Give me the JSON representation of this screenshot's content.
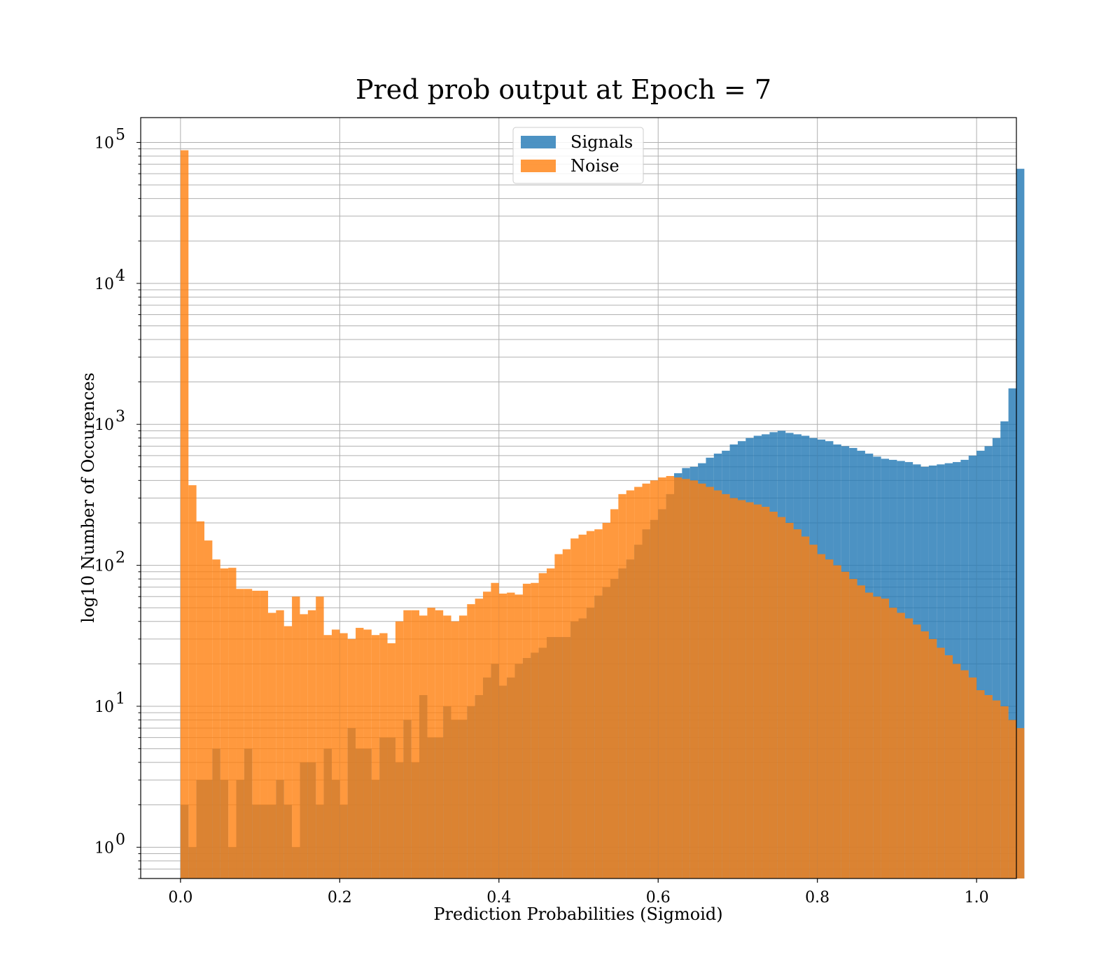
{
  "chart_data": {
    "type": "bar",
    "title": "Pred prob output at Epoch = 7",
    "xlabel": "Prediction Probabilities (Sigmoid)",
    "ylabel": "log10 Number of Occurences",
    "yscale": "log",
    "xlim": [
      -0.05,
      1.05
    ],
    "ylim": [
      0.6,
      150000
    ],
    "xticks": [
      0.0,
      0.2,
      0.4,
      0.6,
      0.8,
      1.0
    ],
    "xtick_labels": [
      "0.0",
      "0.2",
      "0.4",
      "0.6",
      "0.8",
      "1.0"
    ],
    "yticks": [
      {
        "value": 1,
        "base": "10",
        "exp": "0"
      },
      {
        "value": 10,
        "base": "10",
        "exp": "1"
      },
      {
        "value": 100,
        "base": "10",
        "exp": "2"
      },
      {
        "value": 1000,
        "base": "10",
        "exp": "3"
      },
      {
        "value": 10000,
        "base": "10",
        "exp": "4"
      },
      {
        "value": 100000,
        "base": "10",
        "exp": "5"
      }
    ],
    "grid": true,
    "legend_position": "top-center",
    "bin_width": 0.01,
    "bin_start": 0.0,
    "series": [
      {
        "name": "Signals",
        "color": "#1f77b4",
        "opacity": 0.8,
        "values": [
          2,
          1,
          3,
          3,
          5,
          3,
          1,
          3,
          5,
          2,
          2,
          2,
          3,
          2,
          1,
          4,
          4,
          2,
          5,
          3,
          2,
          7,
          5,
          5,
          3,
          6,
          6,
          4,
          8,
          4,
          12,
          6,
          6,
          10,
          8,
          8,
          10,
          12,
          16,
          20,
          14,
          16,
          20,
          22,
          24,
          26,
          31,
          31,
          31,
          40,
          42,
          50,
          61,
          70,
          80,
          95,
          110,
          140,
          180,
          210,
          250,
          320,
          450,
          490,
          500,
          530,
          580,
          620,
          650,
          720,
          760,
          800,
          830,
          850,
          880,
          900,
          870,
          850,
          830,
          800,
          780,
          760,
          720,
          700,
          680,
          650,
          620,
          590,
          570,
          560,
          550,
          540,
          520,
          500,
          510,
          520,
          530,
          540,
          560,
          600,
          650,
          700,
          800,
          1050,
          1800,
          65000
        ]
      },
      {
        "name": "Noise",
        "color": "#ff7f0e",
        "opacity": 0.8,
        "values": [
          88000,
          370,
          205,
          150,
          110,
          95,
          96,
          68,
          68,
          66,
          66,
          46,
          48,
          37,
          60,
          45,
          48,
          60,
          32,
          35,
          33,
          30,
          36,
          35,
          32,
          33,
          28,
          40,
          48,
          48,
          44,
          50,
          48,
          44,
          40,
          44,
          53,
          58,
          65,
          75,
          63,
          64,
          62,
          74,
          75,
          88,
          95,
          120,
          130,
          155,
          165,
          175,
          180,
          200,
          250,
          320,
          340,
          360,
          380,
          400,
          420,
          430,
          420,
          410,
          400,
          380,
          360,
          340,
          320,
          300,
          290,
          280,
          270,
          260,
          240,
          220,
          200,
          180,
          160,
          140,
          120,
          110,
          100,
          90,
          80,
          72,
          64,
          60,
          58,
          50,
          46,
          42,
          38,
          34,
          30,
          26,
          23,
          20,
          18,
          16,
          13,
          12,
          11,
          10,
          8,
          7
        ]
      }
    ]
  }
}
